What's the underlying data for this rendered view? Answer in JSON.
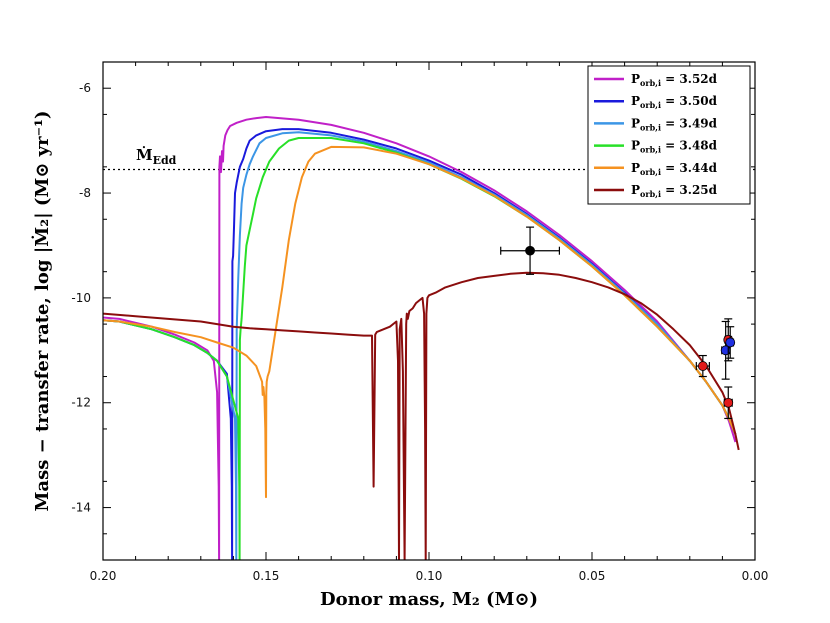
{
  "chart_data": {
    "type": "line",
    "title": "",
    "xlabel": "Donor mass, M₂ (M⊙)",
    "ylabel": "Mass − transfer rate, log |Ṁ₂| (M⊙ yr⁻¹)",
    "xlim": [
      0.2,
      0.0
    ],
    "ylim": [
      -15,
      -5.5
    ],
    "x_reversed": true,
    "grid": false,
    "legend_position": "top-right",
    "xticks": [
      0.2,
      0.15,
      0.1,
      0.05,
      0.0
    ],
    "xtick_labels": [
      "0.20",
      "0.15",
      "0.10",
      "0.05",
      "0.00"
    ],
    "yticks": [
      -6,
      -8,
      -10,
      -12,
      -14
    ],
    "ytick_labels": [
      "-6",
      "-8",
      "-10",
      "-12",
      "-14"
    ],
    "eddington": {
      "label": "Ṁ",
      "subscript": "Edd",
      "y": -7.55
    },
    "series": [
      {
        "name": "P_orb,i = 3.52d",
        "label_main": "P",
        "label_sub": "orb,i",
        "label_val": " = 3.52d",
        "color": "#c020c8",
        "x": [
          0.205,
          0.195,
          0.185,
          0.178,
          0.172,
          0.168,
          0.166,
          0.165,
          0.1648,
          0.1645,
          0.1644,
          0.1643,
          0.1641,
          0.1638,
          0.1635,
          0.1632,
          0.163,
          0.1625,
          0.1618,
          0.161,
          0.159,
          0.156,
          0.153,
          0.15,
          0.14,
          0.13,
          0.12,
          0.11,
          0.1,
          0.09,
          0.08,
          0.07,
          0.06,
          0.05,
          0.04,
          0.03,
          0.02,
          0.015,
          0.01,
          0.008,
          0.007,
          0.006
        ],
        "y": [
          -10.35,
          -10.4,
          -10.55,
          -10.7,
          -10.85,
          -11.0,
          -11.2,
          -11.8,
          -12.6,
          -13.6,
          -15.0,
          -7.5,
          -7.3,
          -7.6,
          -7.2,
          -7.4,
          -7.1,
          -6.9,
          -6.8,
          -6.72,
          -6.66,
          -6.6,
          -6.57,
          -6.55,
          -6.6,
          -6.7,
          -6.85,
          -7.05,
          -7.3,
          -7.6,
          -7.95,
          -8.35,
          -8.8,
          -9.3,
          -9.85,
          -10.45,
          -11.2,
          -11.6,
          -12.05,
          -12.35,
          -12.55,
          -12.75
        ]
      },
      {
        "name": "P_orb,i = 3.50d",
        "label_main": "P",
        "label_sub": "orb,i",
        "label_val": " = 3.50d",
        "color": "#1a1adc",
        "x": [
          0.205,
          0.195,
          0.185,
          0.178,
          0.172,
          0.168,
          0.165,
          0.162,
          0.1608,
          0.1605,
          0.1604,
          0.1603,
          0.1601,
          0.1598,
          0.1595,
          0.159,
          0.1585,
          0.158,
          0.157,
          0.156,
          0.155,
          0.153,
          0.15,
          0.145,
          0.14,
          0.13,
          0.12,
          0.11,
          0.1,
          0.09,
          0.08,
          0.07,
          0.06,
          0.05,
          0.04,
          0.03,
          0.02,
          0.015,
          0.01,
          0.008,
          0.007,
          0.006
        ],
        "y": [
          -10.4,
          -10.45,
          -10.6,
          -10.75,
          -10.9,
          -11.05,
          -11.2,
          -11.45,
          -12.3,
          -13.6,
          -15.0,
          -9.3,
          -9.2,
          -8.6,
          -8.0,
          -7.8,
          -7.65,
          -7.5,
          -7.35,
          -7.15,
          -7.0,
          -6.9,
          -6.82,
          -6.78,
          -6.78,
          -6.85,
          -6.98,
          -7.15,
          -7.38,
          -7.65,
          -8.0,
          -8.4,
          -8.85,
          -9.35,
          -9.9,
          -10.5,
          -11.2,
          -11.6,
          -12.05,
          -12.3,
          -12.45,
          -12.6
        ]
      },
      {
        "name": "P_orb,i = 3.49d",
        "label_main": "P",
        "label_sub": "orb,i",
        "label_val": " = 3.49d",
        "color": "#3c96e6",
        "x": [
          0.205,
          0.195,
          0.185,
          0.178,
          0.172,
          0.168,
          0.165,
          0.162,
          0.1595,
          0.1592,
          0.1591,
          0.159,
          0.1588,
          0.1585,
          0.158,
          0.1575,
          0.157,
          0.156,
          0.155,
          0.154,
          0.152,
          0.15,
          0.145,
          0.14,
          0.13,
          0.12,
          0.11,
          0.1,
          0.09,
          0.08,
          0.07,
          0.06,
          0.05,
          0.04,
          0.03,
          0.02,
          0.015,
          0.01,
          0.008,
          0.007,
          0.006
        ],
        "y": [
          -10.4,
          -10.45,
          -10.6,
          -10.75,
          -10.9,
          -11.05,
          -11.2,
          -11.5,
          -12.3,
          -13.6,
          -15.0,
          -10.6,
          -10.2,
          -9.6,
          -8.8,
          -8.2,
          -7.9,
          -7.65,
          -7.45,
          -7.3,
          -7.05,
          -6.95,
          -6.86,
          -6.84,
          -6.9,
          -7.02,
          -7.2,
          -7.42,
          -7.7,
          -8.03,
          -8.42,
          -8.87,
          -9.37,
          -9.92,
          -10.5,
          -11.2,
          -11.6,
          -12.05,
          -12.3,
          -12.45,
          -12.6
        ]
      },
      {
        "name": "P_orb,i = 3.48d",
        "label_main": "P",
        "label_sub": "orb,i",
        "label_val": " = 3.48d",
        "color": "#28e028",
        "x": [
          0.205,
          0.195,
          0.185,
          0.178,
          0.172,
          0.168,
          0.165,
          0.162,
          0.1585,
          0.1582,
          0.1581,
          0.158,
          0.1578,
          0.1575,
          0.157,
          0.1565,
          0.156,
          0.155,
          0.154,
          0.153,
          0.151,
          0.149,
          0.146,
          0.143,
          0.14,
          0.13,
          0.12,
          0.11,
          0.1,
          0.09,
          0.08,
          0.07,
          0.06,
          0.05,
          0.04,
          0.03,
          0.02,
          0.015,
          0.01,
          0.008,
          0.007,
          0.006
        ],
        "y": [
          -10.4,
          -10.45,
          -10.6,
          -10.75,
          -10.9,
          -11.05,
          -11.2,
          -11.5,
          -12.3,
          -13.6,
          -15.0,
          -10.8,
          -10.6,
          -10.4,
          -9.9,
          -9.4,
          -9.0,
          -8.7,
          -8.4,
          -8.1,
          -7.7,
          -7.4,
          -7.15,
          -7.0,
          -6.95,
          -6.95,
          -7.05,
          -7.23,
          -7.45,
          -7.73,
          -8.06,
          -8.45,
          -8.9,
          -9.4,
          -9.95,
          -10.55,
          -11.2,
          -11.6,
          -12.05,
          -12.3,
          -12.45,
          -12.6
        ]
      },
      {
        "name": "P_orb,i = 3.44d",
        "label_main": "P",
        "label_sub": "orb,i",
        "label_val": " = 3.44d",
        "color": "#f59220",
        "x": [
          0.205,
          0.195,
          0.185,
          0.178,
          0.17,
          0.165,
          0.16,
          0.156,
          0.153,
          0.1512,
          0.151,
          0.1508,
          0.1505,
          0.1502,
          0.15,
          0.1499,
          0.1498,
          0.1495,
          0.149,
          0.147,
          0.145,
          0.143,
          0.141,
          0.139,
          0.137,
          0.135,
          0.13,
          0.12,
          0.11,
          0.1,
          0.09,
          0.08,
          0.07,
          0.06,
          0.05,
          0.04,
          0.03,
          0.02,
          0.015,
          0.01,
          0.008,
          0.007,
          0.006
        ],
        "y": [
          -10.4,
          -10.45,
          -10.55,
          -10.65,
          -10.75,
          -10.85,
          -10.95,
          -11.1,
          -11.3,
          -11.6,
          -11.85,
          -11.7,
          -11.9,
          -12.5,
          -13.8,
          -11.8,
          -11.6,
          -11.5,
          -11.4,
          -10.6,
          -9.8,
          -8.9,
          -8.2,
          -7.7,
          -7.4,
          -7.25,
          -7.12,
          -7.13,
          -7.25,
          -7.45,
          -7.72,
          -8.05,
          -8.45,
          -8.9,
          -9.4,
          -9.95,
          -10.55,
          -11.2,
          -11.6,
          -12.05,
          -12.3,
          -12.45,
          -12.6
        ]
      },
      {
        "name": "P_orb,i = 3.25d",
        "label_main": "P",
        "label_sub": "orb,i",
        "label_val": " = 3.25d",
        "color": "#8b0d0d",
        "x": [
          0.205,
          0.2,
          0.19,
          0.18,
          0.17,
          0.165,
          0.16,
          0.155,
          0.15,
          0.145,
          0.14,
          0.135,
          0.13,
          0.125,
          0.12,
          0.1175,
          0.117,
          0.1165,
          0.116,
          0.114,
          0.112,
          0.111,
          0.11,
          0.1095,
          0.1092,
          0.109,
          0.1085,
          0.108,
          0.1075,
          0.107,
          0.1068,
          0.1065,
          0.106,
          0.105,
          0.104,
          0.103,
          0.102,
          0.1015,
          0.1012,
          0.101,
          0.1008,
          0.1005,
          0.1,
          0.098,
          0.095,
          0.09,
          0.085,
          0.08,
          0.075,
          0.07,
          0.065,
          0.06,
          0.055,
          0.05,
          0.045,
          0.04,
          0.035,
          0.03,
          0.025,
          0.02,
          0.015,
          0.01,
          0.008,
          0.006,
          0.005
        ],
        "y": [
          -10.25,
          -10.3,
          -10.35,
          -10.4,
          -10.45,
          -10.5,
          -10.55,
          -10.58,
          -10.6,
          -10.62,
          -10.64,
          -10.66,
          -10.68,
          -10.7,
          -10.72,
          -10.72,
          -13.6,
          -10.7,
          -10.65,
          -10.6,
          -10.55,
          -10.5,
          -10.45,
          -11.2,
          -15.0,
          -10.6,
          -10.4,
          -11.4,
          -15.0,
          -10.5,
          -10.3,
          -10.4,
          -10.25,
          -10.2,
          -10.1,
          -10.05,
          -10.0,
          -10.3,
          -12.5,
          -15.0,
          -10.3,
          -10.0,
          -9.95,
          -9.9,
          -9.8,
          -9.7,
          -9.62,
          -9.58,
          -9.54,
          -9.52,
          -9.53,
          -9.56,
          -9.62,
          -9.7,
          -9.8,
          -9.93,
          -10.1,
          -10.32,
          -10.6,
          -10.9,
          -11.3,
          -11.8,
          -12.1,
          -12.6,
          -12.9
        ]
      }
    ],
    "observations": [
      {
        "label": "black",
        "x": 0.069,
        "y": -9.1,
        "xerr": 0.009,
        "yerr": 0.45,
        "color": "#000000"
      },
      {
        "label": "red-1",
        "x": 0.016,
        "y": -11.3,
        "xerr": 0.002,
        "yerr": 0.2,
        "color": "#e21a1a"
      },
      {
        "label": "blue-1",
        "x": 0.009,
        "y": -11.0,
        "xerr": 0.0012,
        "yerr": 0.55,
        "color": "#2030e0"
      },
      {
        "label": "red-2",
        "x": 0.0082,
        "y": -10.8,
        "xerr": 0.001,
        "yerr": 0.4,
        "color": "#e21a1a"
      },
      {
        "label": "blue-2",
        "x": 0.0076,
        "y": -10.85,
        "xerr": 0.001,
        "yerr": 0.3,
        "color": "#2030e0"
      },
      {
        "label": "red-3",
        "x": 0.0082,
        "y": -12.0,
        "xerr": 0.0012,
        "yerr": 0.3,
        "color": "#e21a1a"
      }
    ]
  }
}
